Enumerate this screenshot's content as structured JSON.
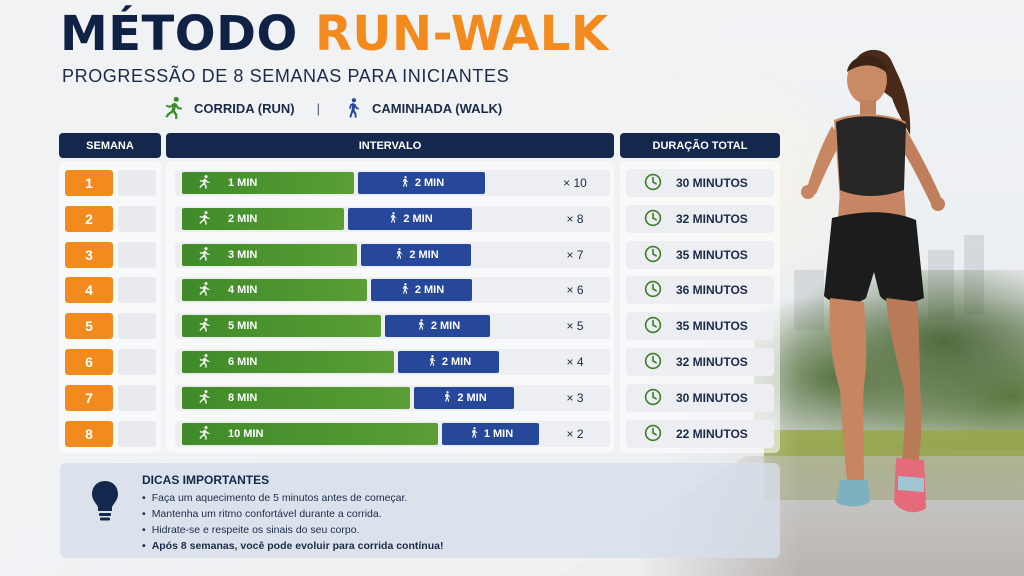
{
  "title": {
    "part1": "MÉTODO",
    "part2": "RUN-WALK"
  },
  "subtitle": "PROGRESSÃO DE 8 SEMANAS PARA INICIANTES",
  "legend": {
    "run_label": "CORRIDA (RUN)",
    "separator": "|",
    "walk_label": "CAMINHADA (WALK)",
    "run_icon": "running-person-icon",
    "walk_icon": "walking-person-icon"
  },
  "headers": {
    "week": "SEMANA",
    "interval": "INTERVALO",
    "duration": "DURAÇÃO TOTAL"
  },
  "colors": {
    "navy": "#14284d",
    "orange": "#f28a1e",
    "run_green": "#4c9530",
    "walk_blue": "#27479b"
  },
  "rows": [
    {
      "week": "1",
      "run": "1 MIN",
      "walk": "2 MIN",
      "reps": "× 10",
      "duration": "30 MINUTOS"
    },
    {
      "week": "2",
      "run": "2 MIN",
      "walk": "2 MIN",
      "reps": "× 8",
      "duration": "32 MINUTOS"
    },
    {
      "week": "3",
      "run": "3 MIN",
      "walk": "2 MIN",
      "reps": "× 7",
      "duration": "35 MINUTOS"
    },
    {
      "week": "4",
      "run": "4 MIN",
      "walk": "2 MIN",
      "reps": "× 6",
      "duration": "36 MINUTOS"
    },
    {
      "week": "5",
      "run": "5 MIN",
      "walk": "2 MIN",
      "reps": "× 5",
      "duration": "35 MINUTOS"
    },
    {
      "week": "6",
      "run": "6 MIN",
      "walk": "2 MIN",
      "reps": "× 4",
      "duration": "32 MINUTOS"
    },
    {
      "week": "7",
      "run": "8 MIN",
      "walk": "2 MIN",
      "reps": "× 3",
      "duration": "30 MINUTOS"
    },
    {
      "week": "8",
      "run": "10 MIN",
      "walk": "1 MIN",
      "reps": "× 2",
      "duration": "22 MINUTOS"
    }
  ],
  "tips": {
    "title": "DICAS IMPORTANTES",
    "icon": "lightbulb-icon",
    "items": [
      "Faça um aquecimento de 5 minutos antes de começar.",
      "Mantenha um ritmo confortável durante a corrida.",
      "Hidrate-se e respeite os sinais do seu corpo.",
      "Após 8 semanas, você pode evoluir para corrida contínua!"
    ]
  }
}
